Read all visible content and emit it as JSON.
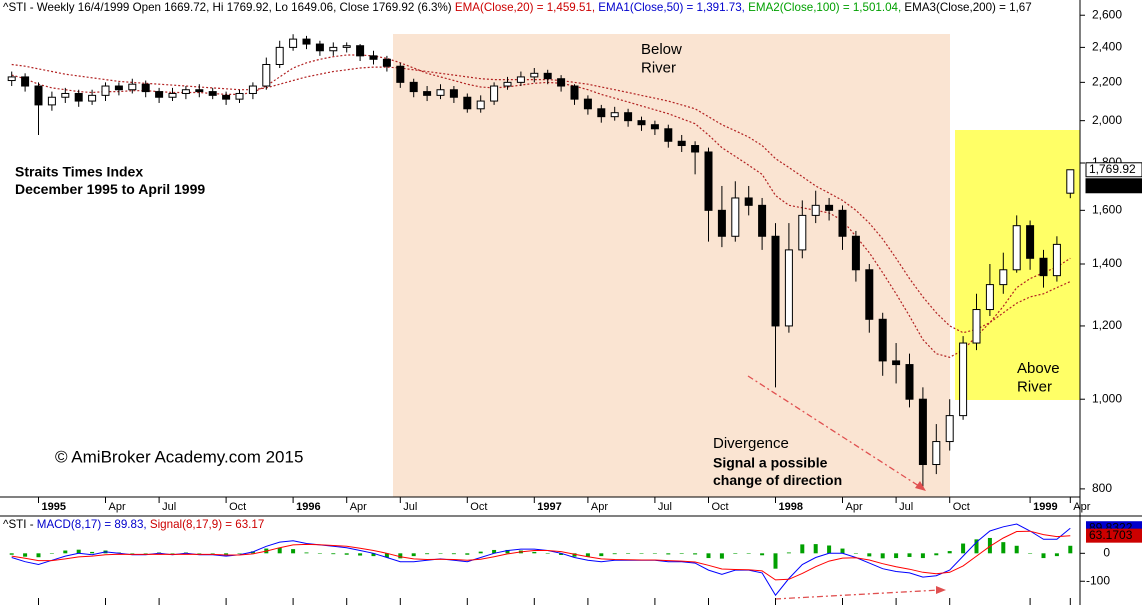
{
  "chart_data": [
    {
      "type": "candlestick",
      "header": [
        {
          "text": "^STI - Weekly 16/4/1999 Open 1669.72, Hi 1769.92, Lo 1649.06, Close 1769.92 (6.3%) ",
          "color": "#000000"
        },
        {
          "text": "EMA(Close,20) = 1,459.51, ",
          "color": "#cc0000"
        },
        {
          "text": "EMA1(Close,50) = 1,391.73, ",
          "color": "#0000cc"
        },
        {
          "text": "EMA2(Close,100) = 1,501.04, ",
          "color": "#00a000"
        },
        {
          "text": "EMA3(Close,200) = 1,67",
          "color": "#000000"
        }
      ],
      "categories": [
        null,
        null,
        "1995",
        null,
        null,
        null,
        null,
        "Apr",
        null,
        null,
        null,
        "Jul",
        null,
        null,
        null,
        null,
        "Oct",
        null,
        null,
        null,
        null,
        "1996",
        null,
        null,
        null,
        "Apr",
        null,
        null,
        null,
        "Jul",
        null,
        null,
        null,
        null,
        "Oct",
        null,
        null,
        null,
        null,
        "1997",
        null,
        null,
        null,
        "Apr",
        null,
        null,
        null,
        null,
        "Jul",
        null,
        null,
        null,
        "Oct",
        null,
        null,
        null,
        null,
        "1998",
        null,
        null,
        null,
        null,
        "Apr",
        null,
        null,
        null,
        "Jul",
        null,
        null,
        null,
        "Oct",
        null,
        null,
        null,
        null,
        null,
        "1999",
        null,
        null,
        "Apr"
      ],
      "open": [
        2210,
        2230,
        2180,
        2080,
        2120,
        2140,
        2100,
        2130,
        2180,
        2160,
        2190,
        2150,
        2120,
        2140,
        2160,
        2150,
        2130,
        2110,
        2140,
        2180,
        2300,
        2400,
        2450,
        2420,
        2380,
        2400,
        2410,
        2350,
        2330,
        2290,
        2200,
        2150,
        2130,
        2160,
        2120,
        2060,
        2100,
        2180,
        2200,
        2230,
        2250,
        2220,
        2180,
        2110,
        2060,
        2020,
        2040,
        2000,
        1980,
        1960,
        1900,
        1880,
        1850,
        1600,
        1500,
        1650,
        1620,
        1500,
        1200,
        1450,
        1580,
        1620,
        1600,
        1500,
        1380,
        1220,
        1100,
        1090,
        1000,
        850,
        900,
        960,
        1150,
        1250,
        1330,
        1380,
        1540,
        1420,
        1360,
        1669.72
      ],
      "high": [
        2260,
        2250,
        2200,
        2150,
        2170,
        2160,
        2160,
        2200,
        2200,
        2220,
        2210,
        2170,
        2170,
        2180,
        2190,
        2170,
        2150,
        2160,
        2200,
        2340,
        2440,
        2480,
        2470,
        2440,
        2430,
        2430,
        2420,
        2380,
        2350,
        2310,
        2220,
        2180,
        2190,
        2180,
        2140,
        2130,
        2200,
        2230,
        2260,
        2280,
        2270,
        2240,
        2190,
        2130,
        2080,
        2070,
        2060,
        2020,
        2000,
        1980,
        1930,
        1900,
        1870,
        1700,
        1720,
        1700,
        1650,
        1550,
        1550,
        1640,
        1680,
        1650,
        1620,
        1520,
        1400,
        1240,
        1150,
        1120,
        1030,
        940,
        1000,
        1170,
        1300,
        1400,
        1440,
        1580,
        1560,
        1450,
        1500,
        1769.92
      ],
      "low": [
        2180,
        2150,
        1930,
        2050,
        2090,
        2070,
        2080,
        2100,
        2130,
        2140,
        2120,
        2090,
        2100,
        2110,
        2120,
        2110,
        2080,
        2090,
        2110,
        2160,
        2280,
        2380,
        2390,
        2350,
        2350,
        2370,
        2320,
        2300,
        2260,
        2170,
        2120,
        2100,
        2110,
        2090,
        2040,
        2040,
        2080,
        2160,
        2180,
        2200,
        2190,
        2150,
        2080,
        2030,
        1990,
        2000,
        1970,
        1950,
        1930,
        1870,
        1850,
        1750,
        1480,
        1460,
        1480,
        1580,
        1450,
        1030,
        1180,
        1420,
        1550,
        1560,
        1450,
        1340,
        1180,
        1060,
        1040,
        980,
        805,
        830,
        880,
        950,
        1130,
        1230,
        1300,
        1370,
        1380,
        1320,
        1340,
        1649.06
      ],
      "close": [
        2230,
        2180,
        2080,
        2120,
        2140,
        2100,
        2130,
        2180,
        2160,
        2190,
        2150,
        2120,
        2140,
        2160,
        2150,
        2130,
        2110,
        2140,
        2180,
        2300,
        2400,
        2450,
        2420,
        2380,
        2400,
        2410,
        2350,
        2330,
        2290,
        2200,
        2150,
        2130,
        2160,
        2120,
        2060,
        2100,
        2180,
        2200,
        2230,
        2250,
        2220,
        2180,
        2110,
        2060,
        2020,
        2040,
        2000,
        1980,
        1960,
        1900,
        1880,
        1850,
        1600,
        1500,
        1650,
        1620,
        1500,
        1200,
        1450,
        1580,
        1620,
        1600,
        1500,
        1380,
        1220,
        1100,
        1090,
        1000,
        850,
        900,
        960,
        1150,
        1250,
        1330,
        1380,
        1540,
        1420,
        1360,
        1470,
        1769.92
      ],
      "up_color": "#ffffff",
      "down_color": "#000000",
      "series": [
        {
          "color": "#b22222",
          "values": [
            2240,
            2220,
            2190,
            2170,
            2160,
            2150,
            2145,
            2150,
            2150,
            2155,
            2155,
            2150,
            2145,
            2145,
            2145,
            2140,
            2135,
            2135,
            2145,
            2180,
            2230,
            2280,
            2310,
            2330,
            2345,
            2355,
            2355,
            2350,
            2335,
            2310,
            2280,
            2250,
            2230,
            2210,
            2190,
            2175,
            2170,
            2175,
            2185,
            2195,
            2200,
            2195,
            2180,
            2160,
            2135,
            2115,
            2095,
            2075,
            2055,
            2035,
            2010,
            1985,
            1930,
            1870,
            1830,
            1790,
            1750,
            1660,
            1620,
            1610,
            1600,
            1590,
            1560,
            1500,
            1440,
            1370,
            1300,
            1230,
            1160,
            1120,
            1110,
            1130,
            1170,
            1210,
            1260,
            1320,
            1350,
            1370,
            1390,
            1420
          ]
        },
        {
          "color": "#b22222",
          "values": [
            2300,
            2290,
            2275,
            2260,
            2245,
            2235,
            2225,
            2215,
            2205,
            2200,
            2195,
            2190,
            2185,
            2180,
            2175,
            2170,
            2165,
            2160,
            2160,
            2170,
            2190,
            2210,
            2230,
            2245,
            2260,
            2270,
            2280,
            2285,
            2285,
            2280,
            2270,
            2260,
            2250,
            2240,
            2230,
            2220,
            2215,
            2215,
            2215,
            2215,
            2215,
            2210,
            2200,
            2190,
            2175,
            2160,
            2145,
            2130,
            2115,
            2100,
            2080,
            2060,
            2020,
            1980,
            1950,
            1920,
            1880,
            1820,
            1780,
            1740,
            1700,
            1670,
            1640,
            1600,
            1550,
            1490,
            1420,
            1350,
            1290,
            1240,
            1200,
            1180,
            1190,
            1210,
            1240,
            1270,
            1290,
            1300,
            1320,
            1340
          ]
        }
      ],
      "log": true,
      "ylim": [
        784,
        2687
      ],
      "yticks": [
        {
          "value": 800,
          "label": "800"
        },
        {
          "value": 1000,
          "label": "1,000"
        },
        {
          "value": 1200,
          "label": "1,200"
        },
        {
          "value": 1400,
          "label": "1,400"
        },
        {
          "value": 1600,
          "label": "1,600"
        },
        {
          "value": 1800,
          "label": "1,800"
        },
        {
          "value": 2000,
          "label": "2,000"
        },
        {
          "value": 2200,
          "label": "2,200"
        },
        {
          "value": 2400,
          "label": "2,400"
        },
        {
          "value": 2600,
          "label": "2,600"
        }
      ],
      "price_labels": [
        {
          "value": 1769.92,
          "label": "1,769.92"
        },
        {
          "value": 1769.92,
          "label": "1,769.92"
        }
      ],
      "annotations": [
        {
          "lines": [
            "Below",
            "River"
          ],
          "color": "#e05050"
        },
        {
          "lines": [
            "Above",
            "River"
          ],
          "color": "#e05050"
        },
        {
          "lines": [
            "Straits Times Index",
            "December 1995 to April 1999"
          ],
          "color": "#e05050"
        },
        {
          "lines": [
            "©  AmiBroker Academy.com 2015"
          ],
          "color": "#000000"
        },
        {
          "lines": [
            "Divergence"
          ],
          "color": "#e05050"
        },
        {
          "lines": [
            "Signal a possible",
            "change of direction"
          ],
          "color": "#cc33cc"
        }
      ]
    },
    {
      "type": "macd",
      "header": [
        {
          "text": "^STI - ",
          "color": "#000000"
        },
        {
          "text": "MACD(8,17) = 89.83, ",
          "color": "#0000cc"
        },
        {
          "text": "Signal(8,17,9) = 63.17",
          "color": "#cc0000"
        }
      ],
      "series": [
        {
          "color": "#0000ff",
          "values": [
            -15,
            -30,
            -40,
            -25,
            -10,
            0,
            -5,
            5,
            0,
            -5,
            -5,
            0,
            -5,
            0,
            -5,
            -5,
            -10,
            -5,
            5,
            25,
            40,
            45,
            35,
            30,
            25,
            20,
            10,
            0,
            -15,
            -30,
            -30,
            -25,
            -20,
            -25,
            -30,
            -15,
            0,
            10,
            15,
            15,
            10,
            0,
            -15,
            -25,
            -30,
            -25,
            -25,
            -25,
            -25,
            -30,
            -30,
            -35,
            -60,
            -75,
            -60,
            -60,
            -70,
            -150,
            -90,
            -40,
            -15,
            0,
            0,
            -15,
            -35,
            -55,
            -65,
            -70,
            -85,
            -80,
            -60,
            -10,
            40,
            80,
            95,
            105,
            80,
            50,
            50,
            89.83
          ]
        },
        {
          "color": "#ff0000",
          "values": [
            -10,
            -18,
            -26,
            -26,
            -20,
            -13,
            -10,
            -5,
            -3,
            -4,
            -4,
            -3,
            -4,
            -3,
            -4,
            -4,
            -6,
            -6,
            -2,
            8,
            20,
            30,
            32,
            31,
            28,
            25,
            18,
            10,
            0,
            -12,
            -20,
            -22,
            -21,
            -22,
            -25,
            -21,
            -12,
            -2,
            5,
            10,
            10,
            6,
            -3,
            -12,
            -20,
            -22,
            -23,
            -24,
            -24,
            -26,
            -28,
            -31,
            -43,
            -56,
            -58,
            -59,
            -63,
            -95,
            -93,
            -72,
            -48,
            -28,
            -17,
            -16,
            -24,
            -37,
            -48,
            -57,
            -68,
            -73,
            -68,
            -45,
            -10,
            25,
            55,
            78,
            79,
            67,
            60,
            63.17
          ]
        },
        {
          "color": "#00a000",
          "style": "histogram",
          "values": [
            -5,
            -12,
            -14,
            1,
            10,
            13,
            5,
            10,
            3,
            -1,
            -1,
            3,
            -1,
            3,
            -1,
            -1,
            -4,
            1,
            7,
            17,
            20,
            15,
            3,
            -1,
            -3,
            -5,
            -8,
            -10,
            -15,
            -18,
            -10,
            -3,
            1,
            -3,
            -5,
            6,
            12,
            12,
            10,
            5,
            0,
            -6,
            -12,
            -13,
            -10,
            -3,
            -2,
            -1,
            -1,
            -4,
            -2,
            -4,
            -17,
            -19,
            -2,
            -1,
            -7,
            -55,
            3,
            32,
            33,
            28,
            17,
            1,
            -11,
            -18,
            -17,
            -13,
            -17,
            -7,
            8,
            35,
            50,
            55,
            40,
            27,
            1,
            -17,
            -10,
            27
          ]
        }
      ],
      "ylim": [
        -185,
        130
      ],
      "yticks": [
        -100,
        0
      ],
      "value_labels": [
        {
          "value": 89.8322,
          "label": "89.8322",
          "color": "#0000cc"
        },
        {
          "value": 63.1703,
          "label": "63.1703",
          "color": "#cc0000"
        }
      ]
    }
  ]
}
